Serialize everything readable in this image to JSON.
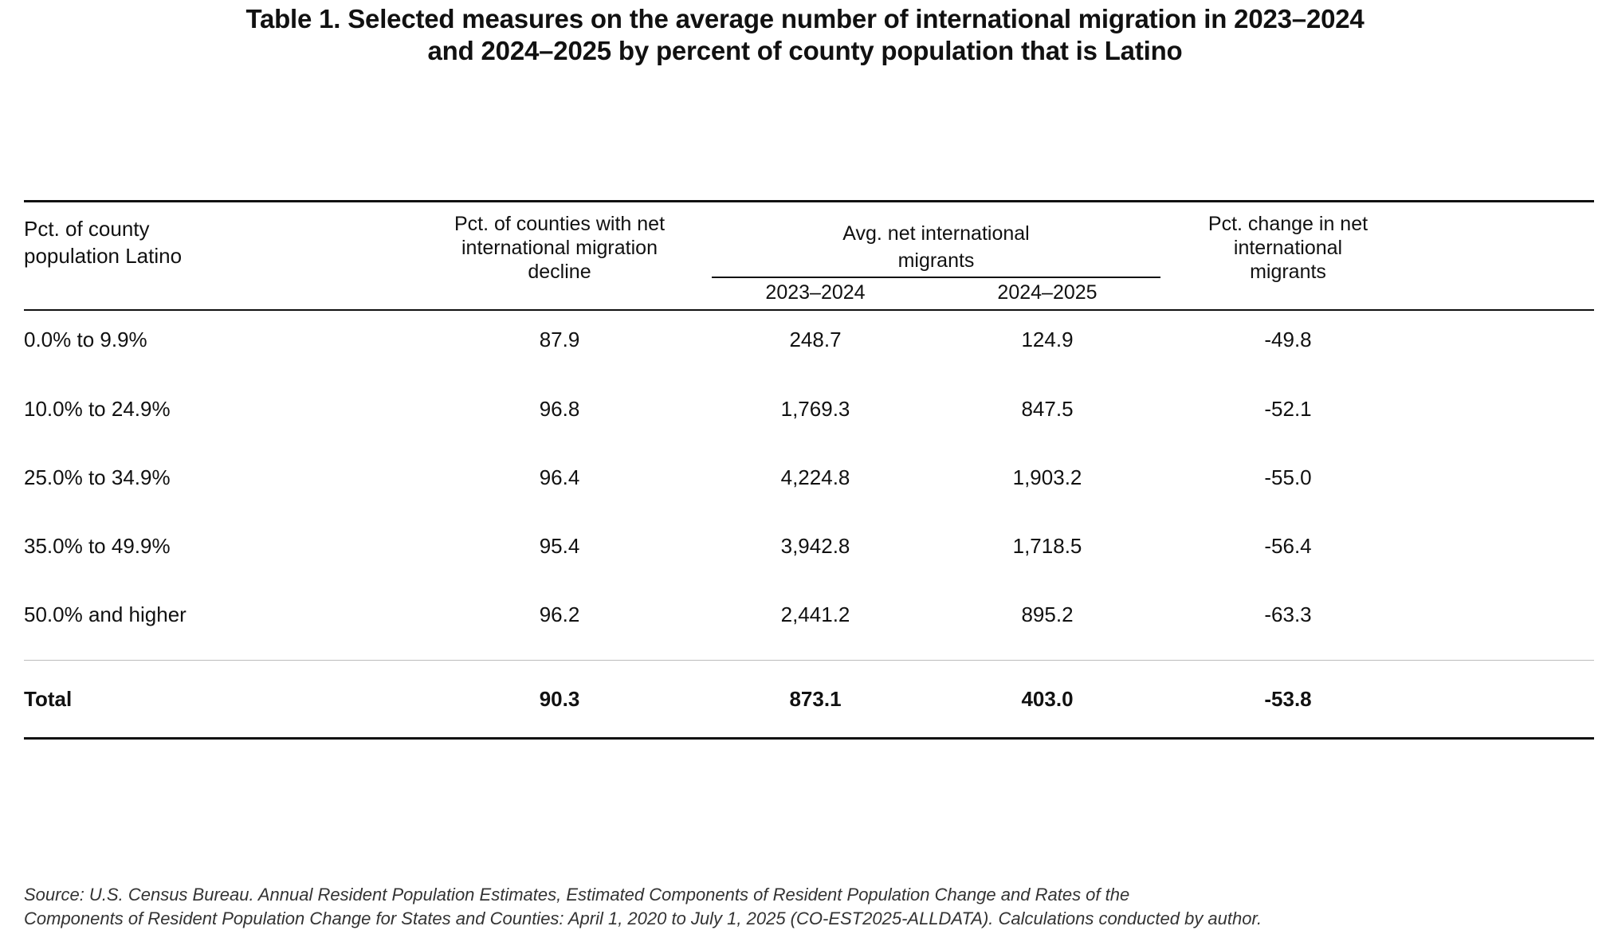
{
  "title": {
    "line1": "Table 1. Selected measures on the average number of international migration in 2023–2024",
    "line2": "and 2024–2025 by percent of county population that is Latino"
  },
  "headers": {
    "col1_line1": "Pct. of county",
    "col1_line2": "population Latino",
    "col2_line1": "Pct. of counties with net",
    "col2_line2": "international migration",
    "col2_line3": "decline",
    "group_line1": "Avg. net international",
    "group_line2": "migrants",
    "sub_2023": "2023–2024",
    "sub_2024": "2024–2025",
    "col5_line1": "Pct. change in net",
    "col5_line2": "international",
    "col5_line3": "migrants"
  },
  "rows": [
    {
      "group": "0.0% to 9.9%",
      "pct_decline": "87.9",
      "avg_2023_2024": "248.7",
      "avg_2024_2025": "124.9",
      "pct_change": "-49.8"
    },
    {
      "group": "10.0% to 24.9%",
      "pct_decline": "96.8",
      "avg_2023_2024": "1,769.3",
      "avg_2024_2025": "847.5",
      "pct_change": "-52.1"
    },
    {
      "group": "25.0% to 34.9%",
      "pct_decline": "96.4",
      "avg_2023_2024": "4,224.8",
      "avg_2024_2025": "1,903.2",
      "pct_change": "-55.0"
    },
    {
      "group": "35.0% to 49.9%",
      "pct_decline": "95.4",
      "avg_2023_2024": "3,942.8",
      "avg_2024_2025": "1,718.5",
      "pct_change": "-56.4"
    },
    {
      "group": "50.0% and higher",
      "pct_decline": "96.2",
      "avg_2023_2024": "2,441.2",
      "avg_2024_2025": "895.2",
      "pct_change": "-63.3"
    }
  ],
  "total": {
    "group": "Total",
    "pct_decline": "90.3",
    "avg_2023_2024": "873.1",
    "avg_2024_2025": "403.0",
    "pct_change": "-53.8"
  },
  "source": {
    "line1": "Source: U.S. Census Bureau. Annual Resident Population Estimates, Estimated Components of Resident Population Change and Rates of the",
    "line2": "Components of Resident Population Change for States and Counties: April 1, 2020 to July 1, 2025 (CO-EST2025-ALLDATA). Calculations conducted by author."
  }
}
